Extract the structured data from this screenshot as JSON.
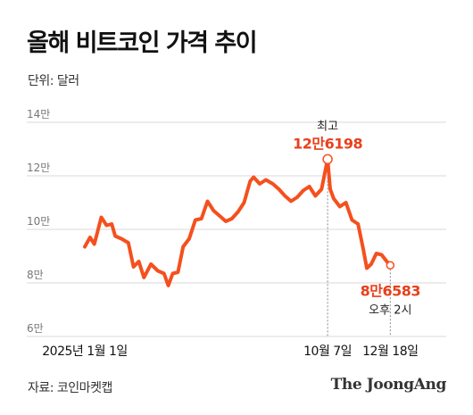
{
  "header": {
    "title": "올해 비트코인 가격 추이",
    "unit": "단위: 달러"
  },
  "footer": {
    "source": "자료: 코인마켓캡",
    "brand": "The JoongAng"
  },
  "colors": {
    "line": "#f4501e",
    "accent_text": "#e8401c",
    "grid": "#d9d9d9"
  },
  "chart_data": {
    "type": "line",
    "title": "올해 비트코인 가격 추이",
    "ylabel": "단위: 달러",
    "ylim": [
      60000,
      140000
    ],
    "yticks": [
      {
        "value": 140000,
        "label": "14만"
      },
      {
        "value": 120000,
        "label": "12만"
      },
      {
        "value": 100000,
        "label": "10만"
      },
      {
        "value": 80000,
        "label": "8만"
      },
      {
        "value": 60000,
        "label": "6만"
      }
    ],
    "xlim": [
      "2025-01-01",
      "2025-12-31"
    ],
    "xticks": [
      {
        "date": "2025-01-01",
        "label": "2025년 1월 1일"
      },
      {
        "date": "2025-10-07",
        "label": "10월 7일"
      },
      {
        "date": "2025-12-18",
        "label": "12월 18일"
      }
    ],
    "grid": true,
    "series": [
      {
        "x": [
          "2025-01-01",
          "2025-01-07",
          "2025-01-12",
          "2025-01-20",
          "2025-01-26",
          "2025-02-01",
          "2025-02-05",
          "2025-02-12",
          "2025-02-20",
          "2025-02-26",
          "2025-03-04",
          "2025-03-10",
          "2025-03-18",
          "2025-03-26",
          "2025-04-02",
          "2025-04-07",
          "2025-04-12",
          "2025-04-18",
          "2025-04-24",
          "2025-05-01",
          "2025-05-08",
          "2025-05-15",
          "2025-05-22",
          "2025-05-29",
          "2025-06-05",
          "2025-06-12",
          "2025-06-19",
          "2025-06-26",
          "2025-07-03",
          "2025-07-10",
          "2025-07-14",
          "2025-07-21",
          "2025-07-28",
          "2025-08-05",
          "2025-08-12",
          "2025-08-19",
          "2025-08-26",
          "2025-09-02",
          "2025-09-09",
          "2025-09-16",
          "2025-09-23",
          "2025-09-30",
          "2025-10-07",
          "2025-10-10",
          "2025-10-14",
          "2025-10-21",
          "2025-10-28",
          "2025-11-04",
          "2025-11-11",
          "2025-11-17",
          "2025-11-21",
          "2025-11-26",
          "2025-12-02",
          "2025-12-08",
          "2025-12-14",
          "2025-12-18"
        ],
        "values": [
          93500,
          97000,
          94500,
          104500,
          101500,
          102000,
          97500,
          96500,
          95000,
          86000,
          88000,
          82000,
          87000,
          84500,
          83500,
          79000,
          83500,
          84000,
          93500,
          96500,
          103500,
          104000,
          110500,
          107000,
          105000,
          103000,
          104000,
          106500,
          110000,
          118000,
          119500,
          117000,
          118500,
          117000,
          115000,
          112500,
          110500,
          112000,
          114500,
          116000,
          112500,
          115000,
          126198,
          115000,
          111500,
          108500,
          110000,
          103500,
          102000,
          92500,
          85500,
          87000,
          91000,
          90500,
          88000,
          86583
        ]
      }
    ],
    "annotations": [
      {
        "label": "최고",
        "value_label": "12만6198",
        "date": "2025-10-07",
        "value": 126198
      },
      {
        "label": "오후 2시",
        "value_label": "8만6583",
        "date": "2025-12-18",
        "value": 86583
      }
    ]
  }
}
